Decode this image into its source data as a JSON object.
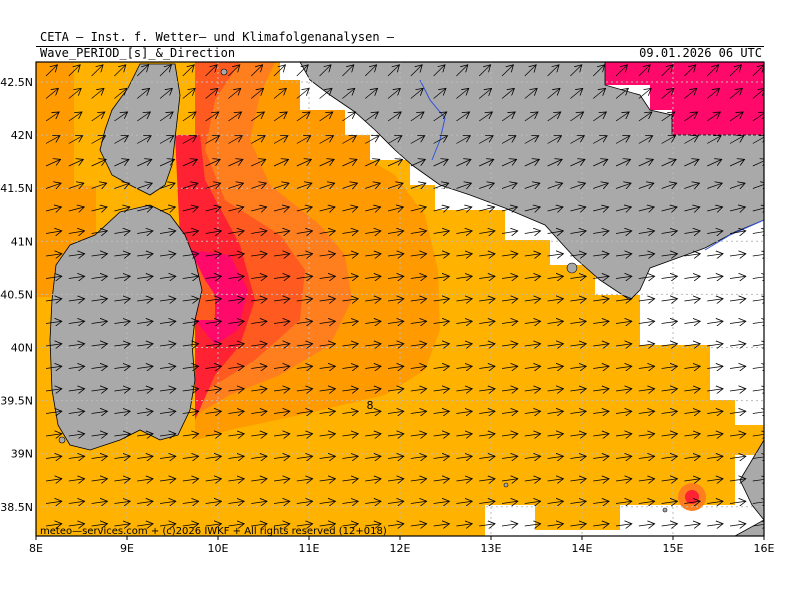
{
  "header": {
    "institute": "CETA — Inst. f. Wetter— und Klimafolgenanalysen —",
    "product": "Wave_PERIOD_[s]_&_Direction",
    "valid_time": "09.01.2026 06 UTC"
  },
  "footer": {
    "copyright": "meteo—services.com + (c)2026 IWKF + All rights reserved (12+018)"
  },
  "axes": {
    "lon_ticks": [
      "8E",
      "9E",
      "10E",
      "11E",
      "12E",
      "13E",
      "14E",
      "15E",
      "16E"
    ],
    "lat_ticks": [
      "42.5N",
      "42N",
      "41.5N",
      "41N",
      "40.5N",
      "40N",
      "39.5N",
      "39N",
      "38.5N"
    ]
  },
  "contour_label": "8",
  "colors": {
    "land": "#a9a9a9",
    "sea_low": "#ffb300",
    "sea_mid": "#ff9b00",
    "sea_high": "#ff7f1f",
    "sea_higher": "#ff5a1f",
    "sea_peak": "#ff2233",
    "sea_magenta": "#ff0a6a",
    "river": "#3355dd",
    "grid": "#bbbbbb"
  }
}
